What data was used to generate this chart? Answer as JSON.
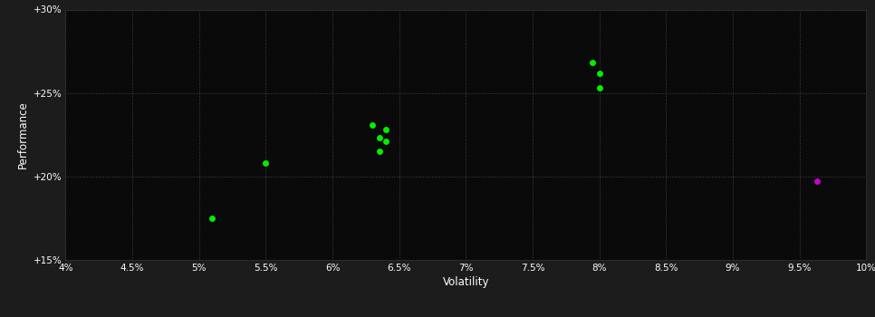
{
  "xlabel": "Volatility",
  "ylabel": "Performance",
  "background_color": "#1c1c1c",
  "plot_background_color": "#0a0a0a",
  "grid_color": "#444444",
  "text_color": "#ffffff",
  "xlim": [
    0.04,
    0.1
  ],
  "ylim": [
    0.15,
    0.3
  ],
  "xticks": [
    0.04,
    0.045,
    0.05,
    0.055,
    0.06,
    0.065,
    0.07,
    0.075,
    0.08,
    0.085,
    0.09,
    0.095,
    0.1
  ],
  "yticks": [
    0.15,
    0.2,
    0.25,
    0.3
  ],
  "xtick_labels": [
    "4%",
    "4.5%",
    "5%",
    "5.5%",
    "6%",
    "6.5%",
    "7%",
    "7.5%",
    "8%",
    "8.5%",
    "9%",
    "9.5%",
    "10%"
  ],
  "ytick_labels": [
    "+15%",
    "+20%",
    "+25%",
    "+30%"
  ],
  "green_points": [
    [
      0.063,
      0.231
    ],
    [
      0.064,
      0.228
    ],
    [
      0.0635,
      0.223
    ],
    [
      0.064,
      0.221
    ],
    [
      0.0635,
      0.215
    ],
    [
      0.055,
      0.208
    ],
    [
      0.051,
      0.175
    ],
    [
      0.0795,
      0.268
    ],
    [
      0.08,
      0.262
    ],
    [
      0.08,
      0.253
    ]
  ],
  "magenta_points": [
    [
      0.0963,
      0.197
    ]
  ],
  "green_color": "#00ee00",
  "magenta_color": "#cc00cc",
  "marker_size": 25
}
